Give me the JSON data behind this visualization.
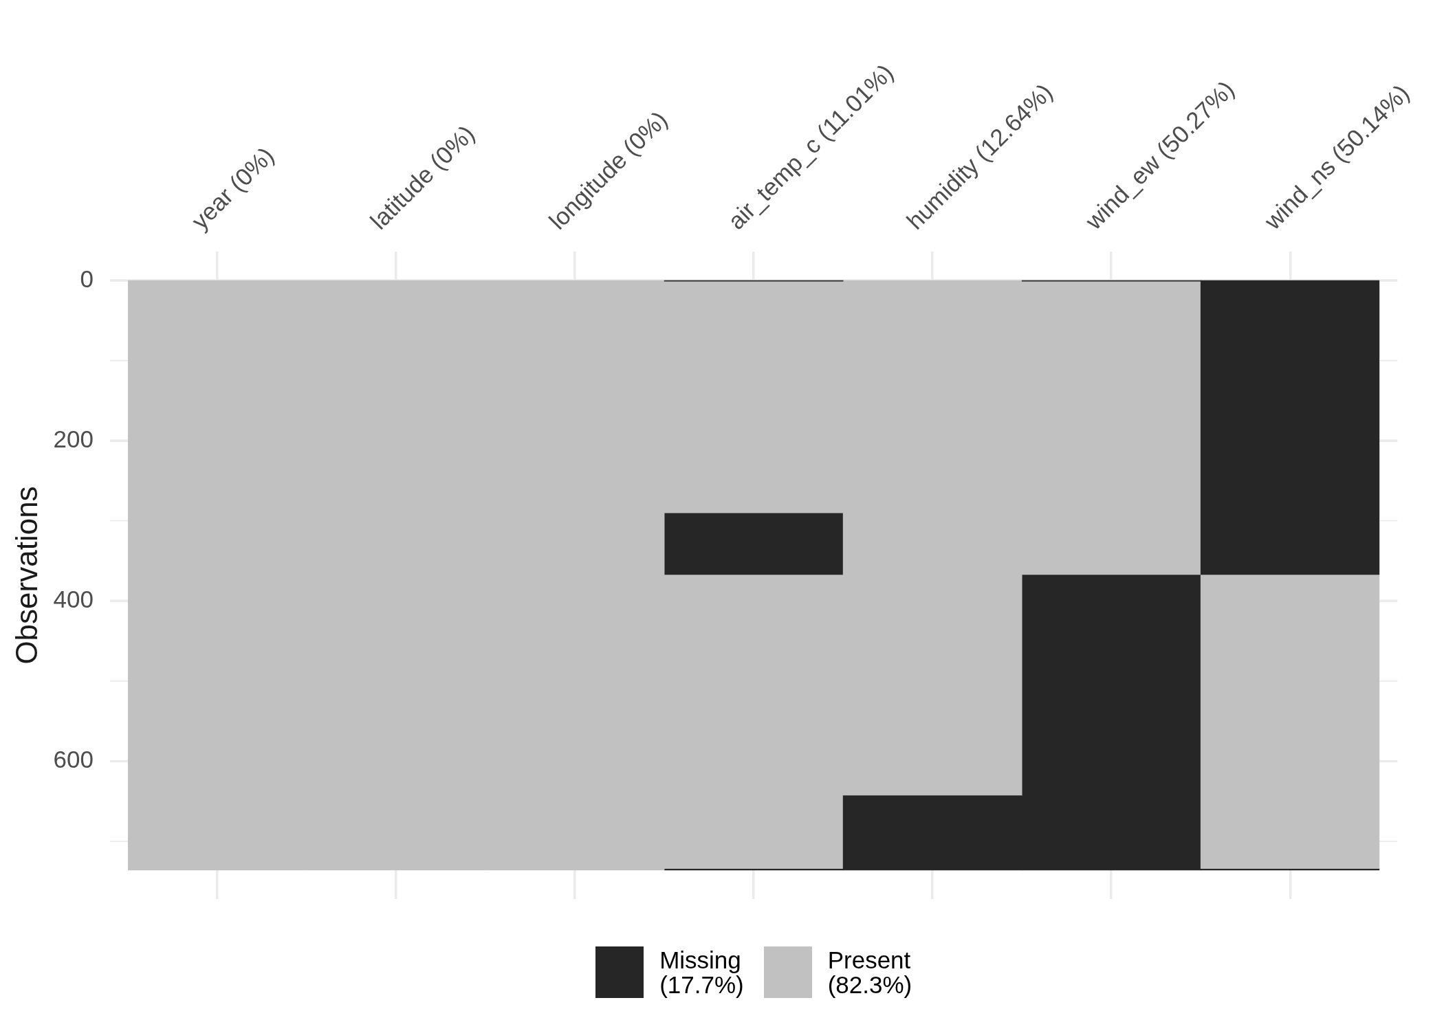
{
  "chart_data": {
    "type": "bar",
    "ylabel": "Observations",
    "categories": [
      "year (0%)",
      "latitude (0%)",
      "longitude (0%)",
      "air_temp_c (11.01%)",
      "humidity (12.64%)",
      "wind_ew (50.27%)",
      "wind_ns (50.14%)"
    ],
    "series": [
      {
        "name": "Missing (17.7%)",
        "color": "#262626",
        "base": [
          null,
          null,
          null,
          0,
          643,
          0,
          0
        ],
        "values": [
          null,
          null,
          null,
          1,
          93,
          1,
          367
        ]
      },
      {
        "name": "Present (82.3%)",
        "color": "#c1c1c1",
        "base": [
          0,
          0,
          0,
          1,
          0,
          1,
          367
        ],
        "values": [
          736,
          736,
          736,
          289,
          643,
          366,
          367
        ]
      },
      {
        "color": "#262626",
        "base": [
          null,
          null,
          null,
          290,
          null,
          367,
          734
        ],
        "values": [
          null,
          null,
          null,
          77,
          null,
          369,
          2
        ]
      },
      {
        "color": "#c1c1c1",
        "base": [
          null,
          null,
          null,
          367,
          null,
          null,
          null
        ],
        "values": [
          null,
          null,
          null,
          367,
          null,
          null,
          null
        ]
      },
      {
        "color": "#262626",
        "base": [
          null,
          null,
          null,
          734,
          null,
          null,
          null
        ],
        "values": [
          null,
          null,
          null,
          2,
          null,
          null,
          null
        ]
      }
    ],
    "ylim": [
      772,
      -36
    ],
    "yticks": [
      0,
      {
        "value": 100,
        "label": null
      },
      200,
      {
        "value": 300,
        "label": null
      },
      400,
      {
        "value": 500,
        "label": null
      },
      600,
      {
        "value": 700,
        "label": null
      }
    ],
    "grid": true,
    "legend": "bottom"
  }
}
